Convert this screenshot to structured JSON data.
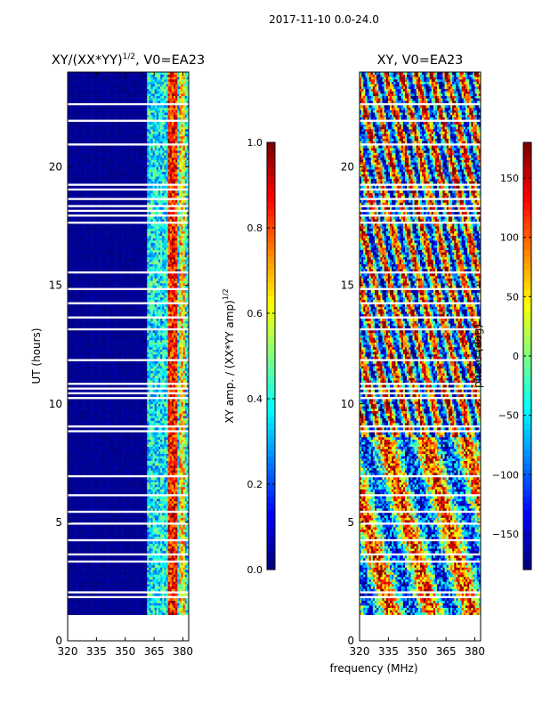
{
  "figure": {
    "suptitle": "2017-11-10 0.0-24.0",
    "shared_xlabel": "frequency (MHz)"
  },
  "chart_data": [
    {
      "type": "heatmap",
      "title_main": "XY/(XX*YY)",
      "title_sup": "1/2",
      "title_rest": ", V0=EA23",
      "xlabel": "",
      "ylabel": "UT (hours)",
      "xlim": [
        320,
        383
      ],
      "ylim": [
        0,
        24
      ],
      "xticks": [
        320,
        335,
        350,
        365,
        380
      ],
      "yticks": [
        0,
        5,
        10,
        15,
        20
      ],
      "data_start_hours": 1.1,
      "colorbar": {
        "label_main": "XY amp. / (XX*YY amp)",
        "label_sup": "1/2",
        "range": [
          0.0,
          1.0
        ],
        "ticks": [
          "0.0",
          "0.2",
          "0.4",
          "0.6",
          "0.8",
          "1.0"
        ],
        "tick_values": [
          0.0,
          0.2,
          0.4,
          0.6,
          0.8,
          1.0
        ]
      }
    },
    {
      "type": "heatmap",
      "title": "XY, V0=EA23",
      "xlabel": "frequency (MHz)",
      "ylabel": "",
      "xlim": [
        320,
        383
      ],
      "ylim": [
        0,
        24
      ],
      "xticks": [
        320,
        335,
        350,
        365,
        380
      ],
      "yticks": [
        0,
        5,
        10,
        15,
        20
      ],
      "data_start_hours": 1.1,
      "colorbar": {
        "label": "phase (deg)",
        "range": [
          -180,
          180
        ],
        "ticks": [
          "−150",
          "−100",
          "−50",
          "0",
          "50",
          "100",
          "150"
        ],
        "tick_values": [
          -150,
          -100,
          -50,
          0,
          50,
          100,
          150
        ]
      }
    }
  ],
  "colors": {
    "jet_low": "#00007f",
    "jet_high": "#7f0000",
    "gap": "#ffffff"
  }
}
